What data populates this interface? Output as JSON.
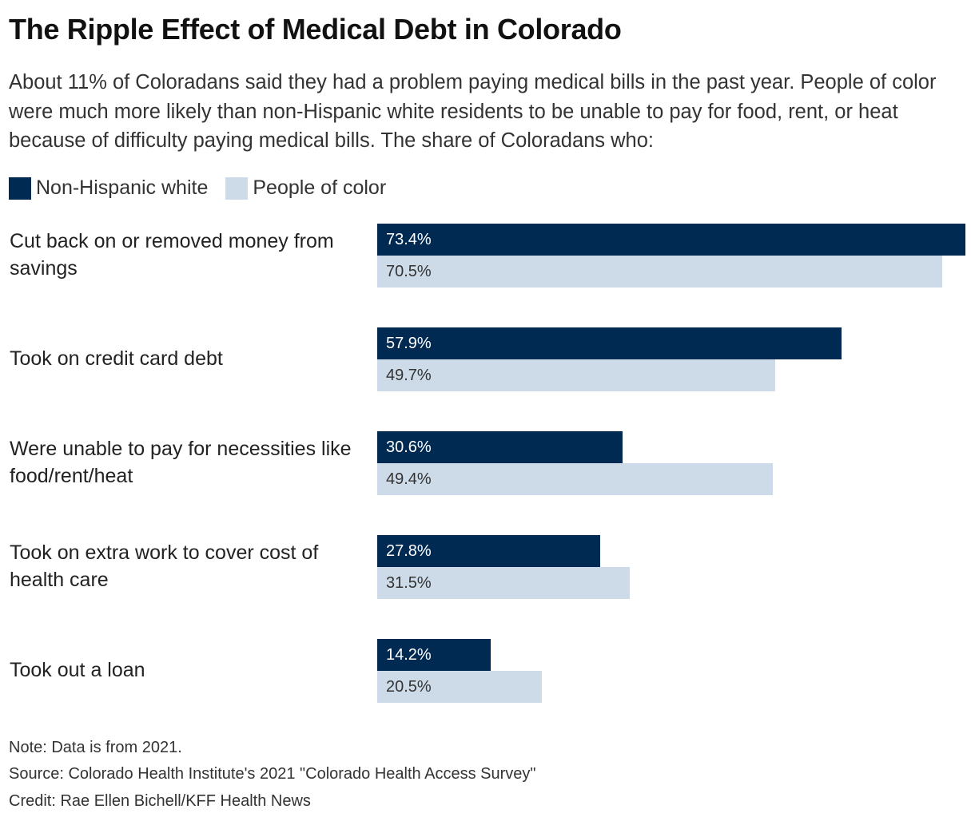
{
  "title": "The Ripple Effect of Medical Debt in Colorado",
  "subtitle": "About 11% of Coloradans said they had a problem paying medical bills in the past year. People of color were much more likely than non-Hispanic white residents to be unable to pay for food, rent, or heat because of difficulty paying medical bills. The share of Coloradans who:",
  "legend": [
    {
      "label": "Non-Hispanic white",
      "color": "#002a52"
    },
    {
      "label": "People of color",
      "color": "#cddbe8"
    }
  ],
  "chart_data": {
    "type": "bar",
    "orientation": "horizontal",
    "title": "The Ripple Effect of Medical Debt in Colorado",
    "categories": [
      "Cut back on or removed money from savings",
      "Took on credit card debt",
      "Were unable to pay for necessities like food/rent/heat",
      "Took on extra work to cover cost of health care",
      "Took out a loan"
    ],
    "series": [
      {
        "name": "Non-Hispanic white",
        "values": [
          73.4,
          57.9,
          30.6,
          27.8,
          14.2
        ],
        "labels": [
          "73.4%",
          "57.9%",
          "30.6%",
          "27.8%",
          "14.2%"
        ]
      },
      {
        "name": "People of color",
        "values": [
          70.5,
          49.7,
          49.4,
          31.5,
          20.5
        ],
        "labels": [
          "70.5%",
          "49.7%",
          "49.4%",
          "31.5%",
          "20.5%"
        ]
      }
    ],
    "xlim": [
      0,
      100
    ],
    "unit": "%",
    "legend_position": "top-left",
    "grid": false
  },
  "footer": {
    "note": "Note: Data is from 2021.",
    "source": "Source: Colorado Health Institute's 2021 \"Colorado Health Access Survey\"",
    "credit": "Credit: Rae Ellen Bichell/KFF Health News"
  }
}
